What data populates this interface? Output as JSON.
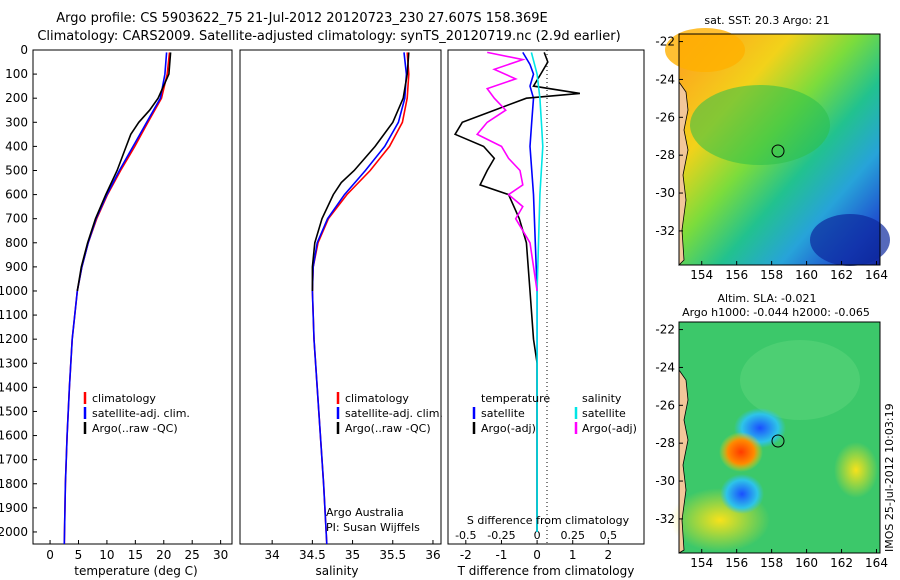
{
  "header": {
    "line1": "Argo profile: CS 5903622_75 21-Jul-2012 20120723_230 27.607S 158.369E",
    "line2": "Climatology: CARS2009. Satellite-adjusted climatology: synTS_20120719.nc (2.9d earlier)"
  },
  "colors": {
    "climatology": "#ff0000",
    "satellite": "#0000ff",
    "argo": "#000000",
    "sal_satellite": "#00e5e5",
    "sal_argo": "#ff00ff",
    "land": "#f2c79a"
  },
  "chart_data": [
    {
      "type": "line",
      "id": "temperature",
      "xlabel": "temperature (deg C)",
      "ylabel": "",
      "xlim": [
        -3,
        32
      ],
      "ylim": [
        2050,
        0
      ],
      "xticks": [
        "0",
        "5",
        "10",
        "15",
        "20",
        "25",
        "30"
      ],
      "yticks": [
        "0",
        "100",
        "200",
        "300",
        "400",
        "500",
        "600",
        "700",
        "800",
        "900",
        "1000",
        "1100",
        "1200",
        "1300",
        "1400",
        "1500",
        "1600",
        "1700",
        "1800",
        "1900",
        "2000"
      ],
      "legend": [
        "climatology",
        "satellite-adj. clim.",
        "Argo(..raw -QC)"
      ],
      "series": [
        {
          "name": "climatology",
          "depth": [
            10,
            100,
            200,
            300,
            400,
            500,
            600,
            700,
            800,
            900,
            1000,
            1200,
            1400,
            1600,
            1800,
            2050
          ],
          "values": [
            21.0,
            20.6,
            19.6,
            17.2,
            14.9,
            12.4,
            10.1,
            8.2,
            6.7,
            5.6,
            4.8,
            3.9,
            3.4,
            3.0,
            2.7,
            2.5
          ]
        },
        {
          "name": "satellite-adj. clim.",
          "depth": [
            10,
            100,
            200,
            300,
            400,
            500,
            600,
            700,
            800,
            900,
            1000,
            1200,
            1400,
            1600,
            1800,
            2050
          ],
          "values": [
            20.5,
            20.2,
            19.4,
            17.0,
            14.6,
            12.2,
            10.0,
            8.1,
            6.7,
            5.6,
            4.8,
            3.9,
            3.4,
            3.0,
            2.7,
            2.5
          ]
        },
        {
          "name": "Argo(..raw -QC)",
          "depth": [
            10,
            100,
            200,
            250,
            300,
            350,
            400,
            500,
            600,
            700,
            800,
            900,
            1000
          ],
          "values": [
            21.2,
            20.9,
            19.0,
            17.5,
            15.6,
            14.2,
            13.4,
            11.8,
            9.8,
            8.0,
            6.6,
            5.5,
            4.8
          ]
        }
      ]
    },
    {
      "type": "line",
      "id": "salinity",
      "xlabel": "salinity",
      "ylabel": "",
      "xlim": [
        33.6,
        36.1
      ],
      "ylim": [
        2050,
        0
      ],
      "xticks": [
        "34",
        "34.5",
        "35",
        "35.5",
        "36"
      ],
      "legend": [
        "climatology",
        "satellite-adj. clim.",
        "Argo(..raw -QC)"
      ],
      "annotation": [
        "Argo Australia",
        "PI: Susan Wijffels"
      ],
      "series": [
        {
          "name": "climatology",
          "depth": [
            10,
            100,
            200,
            300,
            400,
            500,
            600,
            700,
            800,
            900,
            1000,
            1200,
            1400,
            1600,
            1800,
            2050
          ],
          "values": [
            35.68,
            35.7,
            35.68,
            35.62,
            35.46,
            35.22,
            34.93,
            34.7,
            34.57,
            34.51,
            34.5,
            34.52,
            34.56,
            34.6,
            34.64,
            34.68
          ]
        },
        {
          "name": "satellite-adj. clim.",
          "depth": [
            10,
            100,
            200,
            300,
            400,
            500,
            600,
            700,
            800,
            900,
            1000,
            1200,
            1400,
            1600,
            1800,
            2050
          ],
          "values": [
            35.64,
            35.67,
            35.65,
            35.57,
            35.4,
            35.16,
            34.9,
            34.69,
            34.56,
            34.51,
            34.5,
            34.52,
            34.56,
            34.6,
            34.64,
            34.68
          ]
        },
        {
          "name": "Argo(..raw -QC)",
          "depth": [
            10,
            100,
            200,
            300,
            400,
            500,
            550,
            600,
            700,
            800,
            900,
            1000
          ],
          "values": [
            35.7,
            35.68,
            35.63,
            35.5,
            35.28,
            35.02,
            34.86,
            34.76,
            34.62,
            34.53,
            34.5,
            34.5
          ]
        }
      ]
    },
    {
      "type": "line",
      "id": "differences",
      "xlabel": "T difference from climatology",
      "x2label": "S difference from climatology",
      "xlim": [
        -2.5,
        3.0
      ],
      "ylim": [
        2050,
        0
      ],
      "xticks": [
        "-2",
        "-1",
        "0",
        "1",
        "2"
      ],
      "x2ticks": [
        "-0.5",
        "-0.25",
        "0",
        "0.25",
        "0.5"
      ],
      "legend_t": [
        "temperature",
        "satellite",
        "Argo(-adj)"
      ],
      "legend_s": [
        "salinity",
        "satellite",
        "Argo(-adj)"
      ],
      "series": [
        {
          "name": "T satellite",
          "depth": [
            10,
            60,
            100,
            150,
            200,
            300,
            400,
            600,
            800,
            1000,
            1400,
            2000
          ],
          "values": [
            -0.4,
            -0.2,
            -0.1,
            -0.2,
            -0.1,
            -0.15,
            -0.2,
            -0.1,
            -0.05,
            0,
            0,
            0
          ]
        },
        {
          "name": "T Argo(-adj)",
          "depth": [
            10,
            50,
            100,
            150,
            180,
            200,
            250,
            300,
            350,
            400,
            450,
            500,
            560,
            600,
            700,
            800,
            1000,
            1200,
            1300,
            2000
          ],
          "values": [
            0.2,
            0.3,
            0.1,
            -0.1,
            1.2,
            -0.3,
            -1.2,
            -2.1,
            -2.3,
            -1.5,
            -1.2,
            -1.4,
            -1.6,
            -0.8,
            -0.5,
            -0.3,
            -0.2,
            -0.1,
            0,
            0
          ]
        },
        {
          "name": "S satellite",
          "depth": [
            10,
            100,
            200,
            300,
            400,
            600,
            800,
            1000,
            1400,
            2000
          ],
          "values": [
            -0.04,
            0.0,
            0.02,
            0.03,
            0.04,
            0.02,
            0.01,
            0.0,
            0.0,
            0.0
          ]
        },
        {
          "name": "S Argo(-adj)",
          "depth": [
            10,
            40,
            80,
            120,
            160,
            200,
            250,
            300,
            350,
            400,
            450,
            500,
            560,
            600,
            650,
            700,
            800,
            1000
          ],
          "values": [
            -0.35,
            -0.1,
            -0.3,
            -0.15,
            -0.35,
            -0.3,
            -0.22,
            -0.35,
            -0.42,
            -0.25,
            -0.2,
            -0.12,
            -0.1,
            -0.2,
            -0.1,
            -0.15,
            -0.05,
            0.0
          ]
        }
      ]
    }
  ],
  "maps": [
    {
      "id": "sst_map",
      "title1": "sat. SST: 20.3 Argo: 21",
      "title2": "",
      "yticks": [
        "-22",
        "-24",
        "-26",
        "-28",
        "-30",
        "-32"
      ],
      "xticks": [
        "154",
        "156",
        "158",
        "160",
        "162",
        "164"
      ]
    },
    {
      "id": "sla_map",
      "title1": "Altim. SLA: -0.021",
      "title2": "Argo h1000: -0.044 h2000: -0.065",
      "yticks": [
        "-22",
        "-24",
        "-26",
        "-28",
        "-30",
        "-32"
      ],
      "xticks": [
        "154",
        "156",
        "158",
        "160",
        "162",
        "164"
      ]
    }
  ],
  "footer": {
    "vertical_stamp": "IMOS 25-Jul-2012 10:03:19"
  }
}
